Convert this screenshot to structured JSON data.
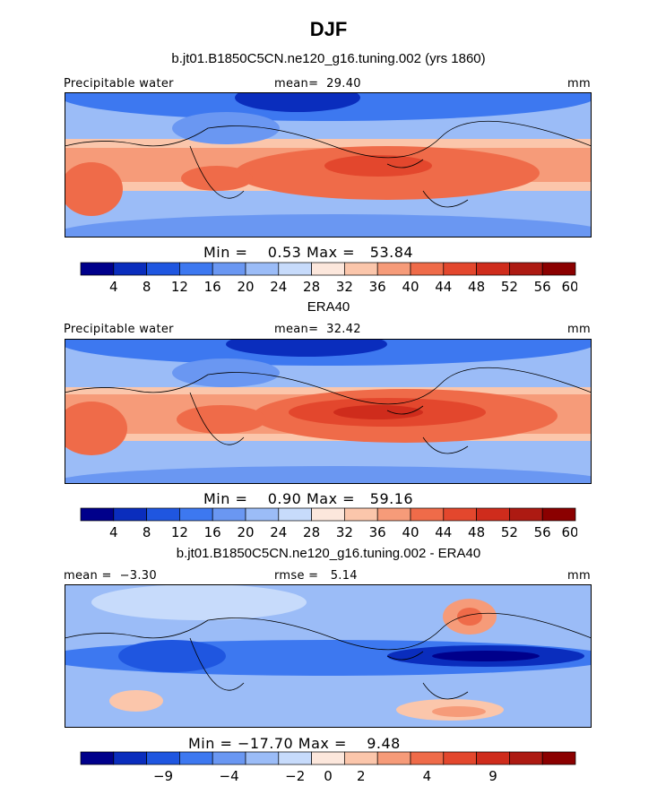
{
  "title": "DJF",
  "chart_data": [
    {
      "type": "heatmap",
      "subtitle": "b.jt01.B1850C5CN.ne120_g16.tuning.002 (yrs 1860)",
      "variable_label": "Precipitable water",
      "stat_label": "mean=",
      "stat_value": "29.40",
      "units": "mm",
      "min_label": "Min =",
      "min_value": "0.53",
      "max_label": "Max =",
      "max_value": "53.84",
      "colorbar_ticks": [
        "4",
        "8",
        "12",
        "16",
        "20",
        "24",
        "28",
        "32",
        "36",
        "40",
        "44",
        "48",
        "52",
        "56",
        "60"
      ]
    },
    {
      "type": "heatmap",
      "subtitle": "ERA40",
      "variable_label": "Precipitable water",
      "stat_label": "mean=",
      "stat_value": "32.42",
      "units": "mm",
      "min_label": "Min =",
      "min_value": "0.90",
      "max_label": "Max =",
      "max_value": "59.16",
      "colorbar_ticks": [
        "4",
        "8",
        "12",
        "16",
        "20",
        "24",
        "28",
        "32",
        "36",
        "40",
        "44",
        "48",
        "52",
        "56",
        "60"
      ]
    },
    {
      "type": "heatmap",
      "subtitle": "b.jt01.B1850C5CN.ne120_g16.tuning.002 - ERA40",
      "mean_label": "mean =",
      "mean_value": "−3.30",
      "rmse_label": "rmse =",
      "rmse_value": "5.14",
      "units": "mm",
      "min_label": "Min =",
      "min_value": "−17.70",
      "max_label": "Max =",
      "max_value": "9.48",
      "colorbar_ticks": [
        "−9",
        "−4",
        "−2",
        "0",
        "2",
        "4",
        "9"
      ]
    }
  ],
  "colors": [
    "#00008b",
    "#0a2dbd",
    "#1f56e0",
    "#3d78f0",
    "#6a97f2",
    "#9bbcf7",
    "#c7dbfb",
    "#fce7dc",
    "#fbc6ab",
    "#f69b79",
    "#ef6b49",
    "#e3472d",
    "#cf2c1c",
    "#ad1a12",
    "#8b0000"
  ]
}
